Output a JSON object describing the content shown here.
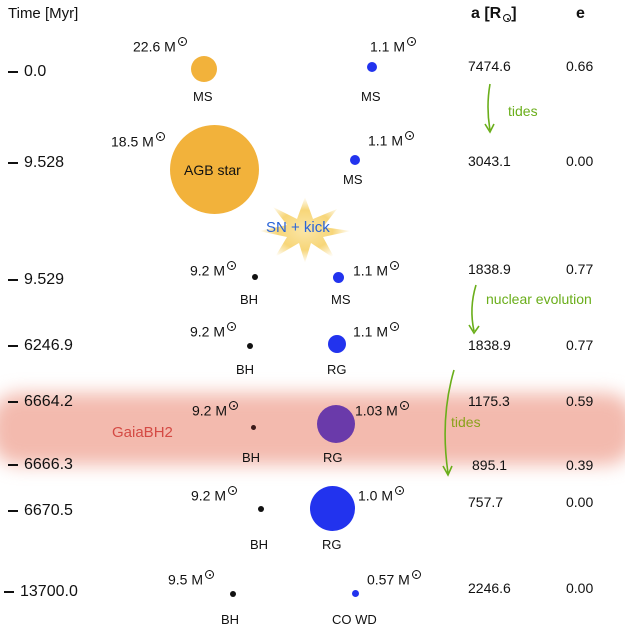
{
  "header": {
    "time": "Time [Myr]",
    "a": "a [R",
    "e": "e"
  },
  "rows": [
    {
      "time": "0.0",
      "m1": "22.6 M",
      "m2": "1.1 M",
      "lbl1": "MS",
      "lbl2": "MS",
      "a": "7474.6",
      "e": "0.66"
    },
    {
      "time": "9.528",
      "m1": "18.5 M",
      "m2": "1.1 M",
      "lbl1": "AGB star",
      "lbl2": "MS",
      "a": "3043.1",
      "e": "0.00"
    },
    {
      "time": "9.529",
      "m1": "9.2 M",
      "m2": "1.1 M",
      "lbl1": "BH",
      "lbl2": "MS",
      "a": "1838.9",
      "e": "0.77"
    },
    {
      "time": "6246.9",
      "m1": "9.2 M",
      "m2": "1.1 M",
      "lbl1": "BH",
      "lbl2": "RG",
      "a": "1838.9",
      "e": "0.77"
    },
    {
      "time": "6664.2",
      "m1": "9.2 M",
      "m2": "1.03 M",
      "lbl1": "BH",
      "lbl2": "RG",
      "a": "1175.3",
      "e": "0.59"
    },
    {
      "time": "6666.3",
      "a": "895.1",
      "e": "0.39"
    },
    {
      "time": "6670.5",
      "m1": "9.2 M",
      "m2": "1.0 M",
      "lbl1": "BH",
      "lbl2": "RG",
      "a": "757.7",
      "e": "0.00"
    },
    {
      "time": "13700.0",
      "m1": "9.5 M",
      "m2": "0.57 M",
      "lbl1": "BH",
      "lbl2": "CO WD",
      "a": "2246.6",
      "e": "0.00"
    }
  ],
  "annotations": {
    "tides1": "tides",
    "nuclear": "nuclear evolution",
    "tides2": "tides",
    "sn": "SN + kick",
    "gaia": "GaiaBH2"
  },
  "colors": {
    "ms_primary": "#f2b23b",
    "companion": "#2233ee",
    "bh": "#111111",
    "highlight": "#ea826c",
    "arrow": "#6aae1a",
    "rg_highlight": "#6a3aaa"
  }
}
